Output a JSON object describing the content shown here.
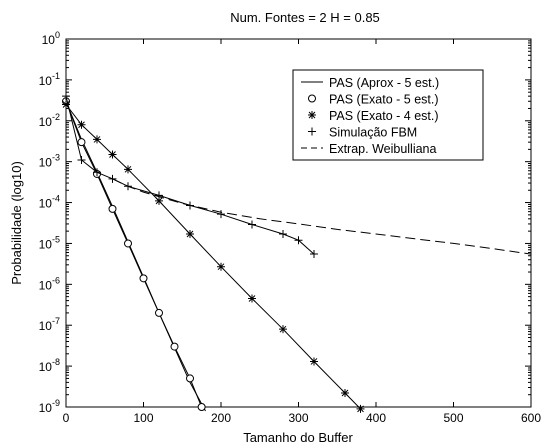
{
  "chart_data": {
    "type": "line",
    "title": "Num. Fontes = 2  H = 0.85",
    "xlabel": "Tamanho do Buffer",
    "ylabel": "Probabilidade (log10)",
    "xlim": [
      0,
      600
    ],
    "ylim_log10": [
      -9,
      0
    ],
    "yscale": "log",
    "grid": false,
    "legend_position": "top-right",
    "x_ticks": [
      0,
      100,
      200,
      300,
      400,
      500,
      600
    ],
    "x_tick_labels": [
      "0",
      "100",
      "200",
      "300",
      "400",
      "500",
      "600"
    ],
    "y_ticks_log10": [
      0,
      -1,
      -2,
      -3,
      -4,
      -5,
      -6,
      -7,
      -8,
      -9
    ],
    "y_tick_base": "10",
    "y_tick_exponents": [
      "0",
      "-1",
      "-2",
      "-3",
      "-4",
      "-5",
      "-6",
      "-7",
      "-8",
      "-9"
    ],
    "series": [
      {
        "name": "PAS (Aprox - 5 est.)",
        "style": "solid",
        "marker": "none",
        "x": [
          0,
          20,
          40,
          60,
          80,
          100,
          120,
          140,
          160,
          180
        ],
        "y": [
          0.03,
          0.0035,
          0.00055,
          8e-05,
          1.1e-05,
          1.5e-06,
          2e-07,
          2.8e-08,
          4e-09,
          8e-10
        ]
      },
      {
        "name": "PAS (Exato - 5 est.)",
        "style": "solid",
        "marker": "circle",
        "x": [
          0,
          20,
          40,
          60,
          80,
          100,
          120,
          140,
          160,
          175
        ],
        "y": [
          0.03,
          0.003,
          0.0005,
          7e-05,
          1e-05,
          1.4e-06,
          2e-07,
          3e-08,
          5e-09,
          1e-09
        ]
      },
      {
        "name": "PAS (Exato - 4 est.)",
        "style": "solid",
        "marker": "star",
        "x": [
          0,
          20,
          40,
          60,
          80,
          120,
          160,
          200,
          240,
          280,
          320,
          360,
          380
        ],
        "y": [
          0.025,
          0.008,
          0.0035,
          0.0015,
          0.00065,
          0.00011,
          1.7e-05,
          2.7e-06,
          4.5e-07,
          8e-08,
          1.3e-08,
          2.2e-09,
          9e-10
        ]
      },
      {
        "name": "Simulação FBM",
        "style": "solid",
        "marker": "plus",
        "x": [
          0,
          20,
          40,
          60,
          80,
          120,
          160,
          200,
          240,
          280,
          300,
          320
        ],
        "y": [
          0.04,
          0.0011,
          0.00055,
          0.00038,
          0.00025,
          0.00015,
          8.5e-05,
          5.2e-05,
          2.9e-05,
          1.7e-05,
          1.2e-05,
          5.5e-06
        ]
      },
      {
        "name": "Extrap. Weibulliana",
        "style": "dashed",
        "marker": "none",
        "x": [
          60,
          80,
          100,
          150,
          200,
          250,
          300,
          350,
          400,
          450,
          500,
          550,
          600
        ],
        "y": [
          0.00038,
          0.00025,
          0.00018,
          9.5e-05,
          5.8e-05,
          4e-05,
          3e-05,
          2.2e-05,
          1.7e-05,
          1.3e-05,
          1e-05,
          7.5e-06,
          5.5e-06
        ]
      }
    ]
  }
}
